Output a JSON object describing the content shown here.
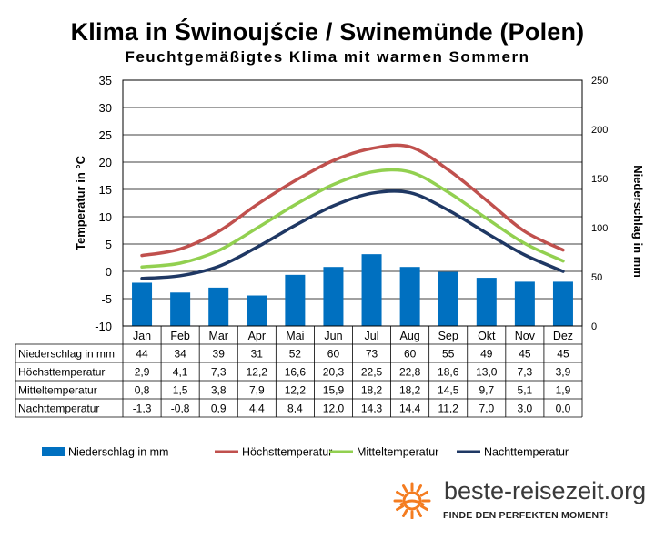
{
  "chart_data": {
    "type": "bar+line",
    "title": "Klima in Świnoujście / Swinemünde (Polen)",
    "subtitle": "Feuchtgemäßigtes Klima mit warmen Sommern",
    "ylabel_left": "Temperatur in °C",
    "ylabel_right": "Niederschlag in mm",
    "ylim_left": [
      -10,
      35
    ],
    "yticks_left": [
      -10,
      -5,
      0,
      5,
      10,
      15,
      20,
      25,
      30,
      35
    ],
    "ylim_right": [
      0,
      250
    ],
    "yticks_right": [
      0,
      50,
      100,
      150,
      200,
      250
    ],
    "grid": true,
    "legend_position": "bottom",
    "categories": [
      "Jan",
      "Feb",
      "Mar",
      "Apr",
      "Mai",
      "Jun",
      "Jul",
      "Aug",
      "Sep",
      "Okt",
      "Nov",
      "Dez"
    ],
    "bar_series": {
      "name": "Niederschlag in mm",
      "color": "#0070c0",
      "values": [
        44,
        34,
        39,
        31,
        52,
        60,
        73,
        60,
        55,
        49,
        45,
        45
      ]
    },
    "line_series": [
      {
        "name": "Höchsttemperatur",
        "color": "#c0504d",
        "values": [
          2.9,
          4.1,
          7.3,
          12.2,
          16.6,
          20.3,
          22.5,
          22.8,
          18.6,
          13.0,
          7.3,
          3.9
        ]
      },
      {
        "name": "Mitteltemperatur",
        "color": "#92d050",
        "values": [
          0.8,
          1.5,
          3.8,
          7.9,
          12.2,
          15.9,
          18.2,
          18.2,
          14.5,
          9.7,
          5.1,
          1.9
        ]
      },
      {
        "name": "Nachttemperatur",
        "color": "#1f3864",
        "values": [
          -1.3,
          -0.8,
          0.9,
          4.4,
          8.4,
          12.0,
          14.3,
          14.4,
          11.2,
          7.0,
          3.0,
          0.0
        ]
      }
    ],
    "table_rows": [
      {
        "label": "Niederschlag in mm",
        "cells": [
          "44",
          "34",
          "39",
          "31",
          "52",
          "60",
          "73",
          "60",
          "55",
          "49",
          "45",
          "45"
        ]
      },
      {
        "label": "Höchsttemperatur",
        "cells": [
          "2,9",
          "4,1",
          "7,3",
          "12,2",
          "16,6",
          "20,3",
          "22,5",
          "22,8",
          "18,6",
          "13,0",
          "7,3",
          "3,9"
        ]
      },
      {
        "label": "Mitteltemperatur",
        "cells": [
          "0,8",
          "1,5",
          "3,8",
          "7,9",
          "12,2",
          "15,9",
          "18,2",
          "18,2",
          "14,5",
          "9,7",
          "5,1",
          "1,9"
        ]
      },
      {
        "label": "Nachttemperatur",
        "cells": [
          "-1,3",
          "-0,8",
          "0,9",
          "4,4",
          "8,4",
          "12,0",
          "14,3",
          "14,4",
          "11,2",
          "7,0",
          "3,0",
          "0,0"
        ]
      }
    ]
  },
  "branding": {
    "name": "beste-reisezeit.org",
    "slogan": "FINDE DEN PERFEKTEN MOMENT!",
    "logo_icon": "sun-icon",
    "logo_color": "#f47c20"
  }
}
